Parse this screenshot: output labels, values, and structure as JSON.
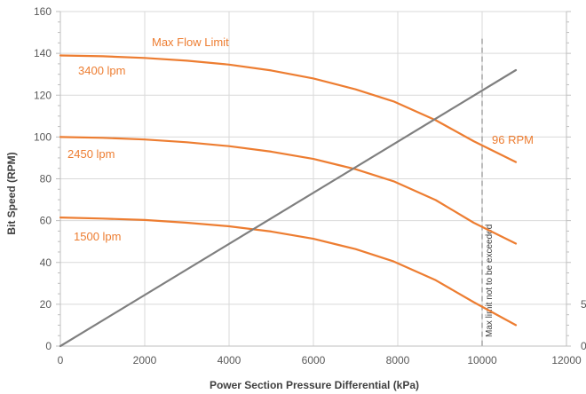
{
  "chart_data": {
    "type": "line",
    "title": "",
    "xlabel": "Power Section Pressure Differential (kPa)",
    "ylabel": "Bit Speed (RPM)",
    "xlim": [
      0,
      12000
    ],
    "ylim": [
      0,
      160
    ],
    "x_ticks": [
      0,
      2000,
      4000,
      6000,
      8000,
      10000,
      12000
    ],
    "y_ticks": [
      0,
      20,
      40,
      60,
      80,
      100,
      120,
      140,
      160
    ],
    "y2_ticks": [
      0,
      5
    ],
    "grid": true,
    "colors": {
      "curves": "#ED7D31",
      "torque_line": "#7F7F7F",
      "limit_line": "#A6A6A6",
      "grid": "#D9D9D9"
    },
    "series": [
      {
        "name": "3400 lpm",
        "x": [
          0,
          1000,
          2000,
          3000,
          4000,
          5000,
          6000,
          7000,
          7900,
          8900,
          9800,
          10800
        ],
        "y": [
          139,
          138.6,
          137.8,
          136.5,
          134.6,
          131.8,
          128,
          122.8,
          117,
          108,
          98,
          88
        ]
      },
      {
        "name": "2450 lpm",
        "x": [
          0,
          1000,
          2000,
          3000,
          4000,
          5000,
          6000,
          7000,
          7900,
          8900,
          9800,
          10800
        ],
        "y": [
          100,
          99.6,
          98.8,
          97.5,
          95.6,
          93,
          89.5,
          84.6,
          78.8,
          69.8,
          59,
          49
        ]
      },
      {
        "name": "1500 lpm",
        "x": [
          0,
          1000,
          2000,
          3000,
          4000,
          5000,
          6000,
          7000,
          7900,
          8900,
          9800,
          10800
        ],
        "y": [
          61.5,
          61,
          60.3,
          59,
          57.3,
          54.8,
          51.3,
          46.4,
          40.5,
          31.5,
          21,
          10
        ]
      },
      {
        "x": [
          0,
          10800
        ],
        "y": [
          0,
          132
        ]
      }
    ],
    "limit_line": {
      "x": 10000,
      "ymin": 0,
      "ymax": 147,
      "label": "Max limit not to be exceeded"
    },
    "annotations": {
      "max_flow": "Max Flow Limit",
      "rpm_96": "96 RPM"
    }
  }
}
